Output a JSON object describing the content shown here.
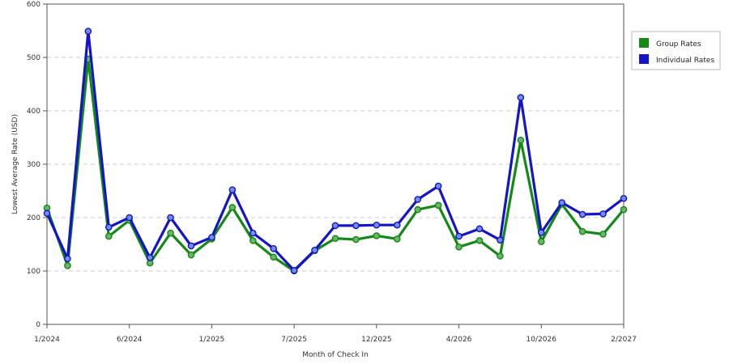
{
  "chart_data": {
    "type": "line",
    "xlabel": "Month of Check In",
    "ylabel": "Lowest Average Rate (USD)",
    "ylim": [
      0,
      600
    ],
    "yticks": [
      0,
      100,
      200,
      300,
      400,
      500,
      600
    ],
    "grid": true,
    "legend_position": "right",
    "x_ticks": [
      {
        "index": 0,
        "label": "1/2024"
      },
      {
        "index": 4,
        "label": "6/2024"
      },
      {
        "index": 8,
        "label": "1/2025"
      },
      {
        "index": 12,
        "label": "7/2025"
      },
      {
        "index": 16,
        "label": "12/2025"
      },
      {
        "index": 20,
        "label": "4/2026"
      },
      {
        "index": 24,
        "label": "10/2026"
      },
      {
        "index": 28,
        "label": "2/2027"
      }
    ],
    "series": [
      {
        "name": "Group Rates",
        "color": "#138a13",
        "values": [
          218,
          110,
          497,
          165,
          195,
          115,
          171,
          130,
          160,
          219,
          157,
          126,
          100,
          138,
          161,
          159,
          166,
          160,
          215,
          223,
          145,
          157,
          128,
          345,
          155,
          225,
          174,
          169,
          215
        ]
      },
      {
        "name": "Individual Rates",
        "color": "#1414c8",
        "values": [
          208,
          123,
          549,
          182,
          200,
          125,
          200,
          147,
          163,
          252,
          171,
          142,
          101,
          139,
          185,
          185,
          186,
          186,
          234,
          259,
          165,
          179,
          158,
          425,
          172,
          228,
          206,
          207,
          236
        ]
      }
    ]
  }
}
